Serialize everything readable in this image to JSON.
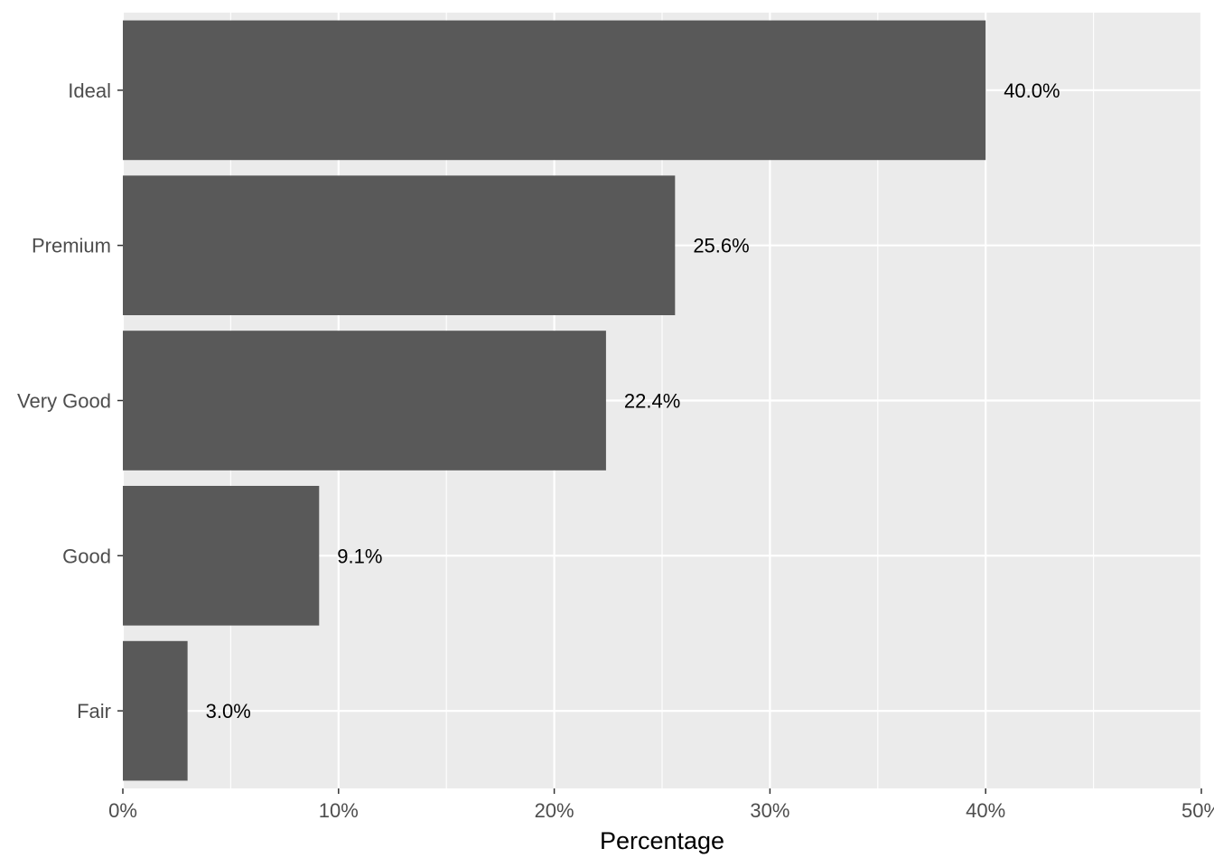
{
  "chart_data": {
    "type": "bar",
    "orientation": "horizontal",
    "categories": [
      "Ideal",
      "Premium",
      "Very Good",
      "Good",
      "Fair"
    ],
    "values": [
      40.0,
      25.6,
      22.4,
      9.1,
      3.0
    ],
    "data_labels": [
      "40.0%",
      "25.6%",
      "22.4%",
      "9.1%",
      "3.0%"
    ],
    "title": "",
    "xlabel": "Percentage",
    "ylabel": "",
    "xlim": [
      0,
      50
    ],
    "x_ticks": [
      0,
      10,
      20,
      30,
      40,
      50
    ],
    "x_tick_labels": [
      "0%",
      "10%",
      "20%",
      "30%",
      "40%",
      "50%"
    ],
    "grid": true,
    "legend": "none",
    "colors": {
      "bar": "#595959",
      "panel_background": "#ebebeb",
      "grid_line": "#ffffff",
      "tick_text": "#4d4d4d",
      "label_text": "#000000"
    }
  }
}
